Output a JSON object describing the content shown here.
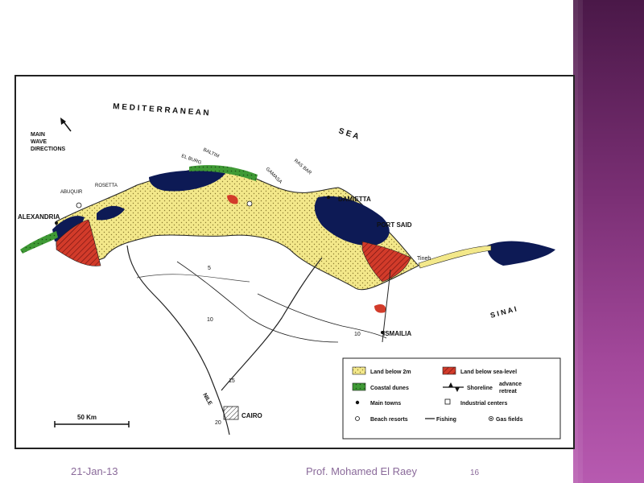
{
  "slide": {
    "date": "21-Jan-13",
    "author": "Prof. Mohamed El Raey",
    "page_number": "16"
  },
  "map": {
    "sea_label_1": "M E D I T E R R A N E A N",
    "sea_label_2": "S E A",
    "wave_label_1": "MAIN",
    "wave_label_2": "WAVE",
    "wave_label_3": "DIRECTIONS",
    "places": {
      "alexandria": "ALEXANDRIA",
      "abuquir": "ABUQUIR",
      "rosetta": "ROSETTA",
      "el_burg": "EL BURG",
      "baltim": "BALTIM",
      "gamasa": "GAMASA",
      "ras_bar": "RAS BAR",
      "damietta": "DAMIETTA",
      "port_said": "PORT SAID",
      "tineh": "Tineh",
      "sinai": "S I N A I",
      "ismailia": "ISMAILIA",
      "cairo": "CAIRO",
      "nile": "NILE"
    },
    "contours": [
      "5",
      "10",
      "10",
      "15",
      "20"
    ],
    "scale_label": "50 Km",
    "legend": {
      "land_below_2m": "Land below 2m",
      "land_below_sea_level": "Land below sea-level",
      "coastal_dunes": "Coastal dunes",
      "shoreline": "Shoreline",
      "shoreline_advance": "advance",
      "shoreline_retreat": "retreat",
      "main_towns": "Main towns",
      "industrial_centers": "Industrial centers",
      "beach_resorts": "Beach resorts",
      "fishing": "Fishing",
      "gas_fields": "Gas fields"
    },
    "colors": {
      "land_below_2m": "#f3e88a",
      "land_below_sea_level": "#d23b2a",
      "coastal_dunes": "#3f9a35",
      "lake": "#0d1a55"
    }
  }
}
